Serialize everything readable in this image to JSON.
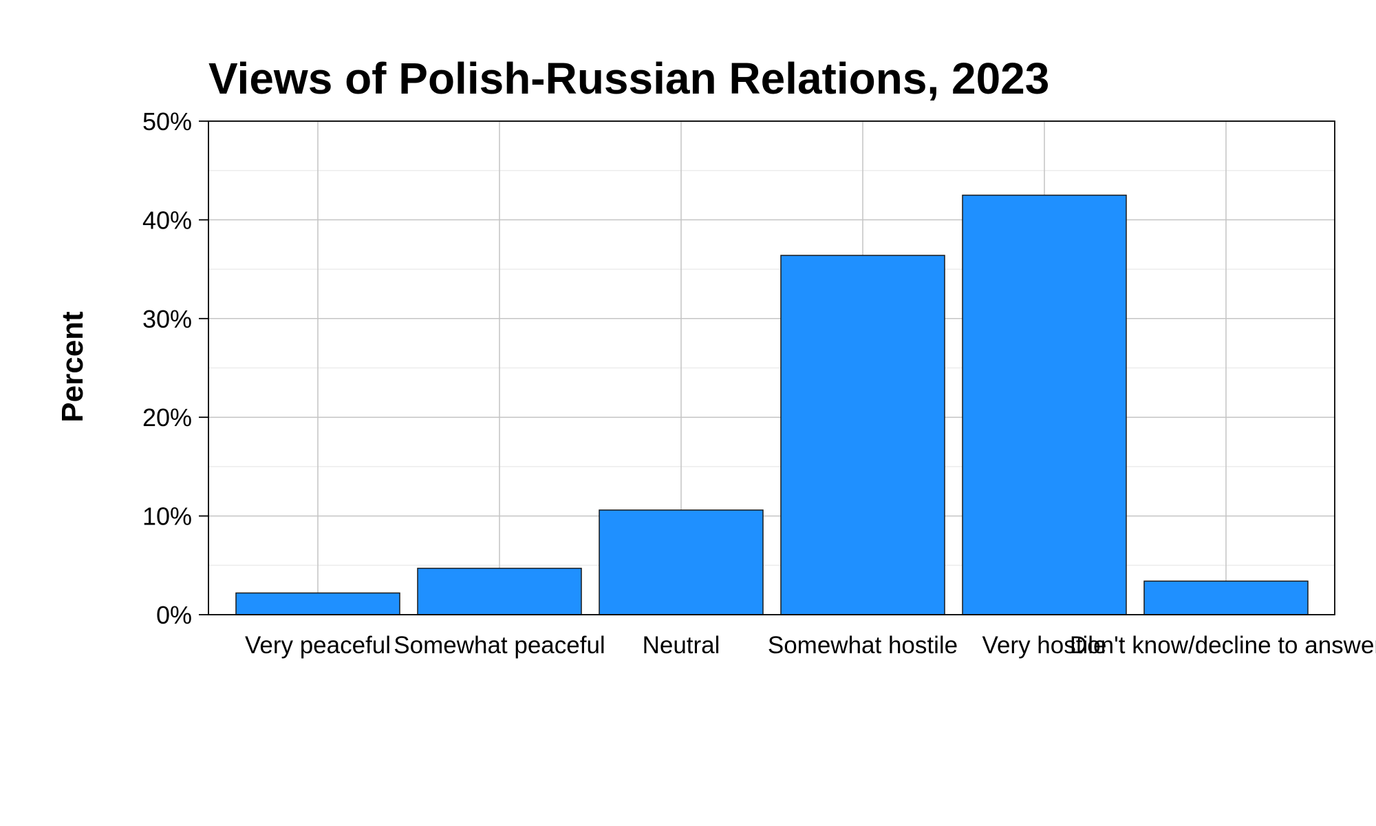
{
  "chart_data": {
    "type": "bar",
    "title": "Views of Polish-Russian Relations, 2023",
    "xlabel": "",
    "ylabel": "Percent",
    "categories": [
      "Very peaceful",
      "Somewhat peaceful",
      "Neutral",
      "Somewhat hostile",
      "Very hostile",
      "Don't know/decline to answer"
    ],
    "values": [
      2.2,
      4.7,
      10.6,
      36.4,
      42.5,
      3.4
    ],
    "ylim": [
      0,
      50
    ],
    "yticks": [
      0,
      10,
      20,
      30,
      40,
      50
    ],
    "ytick_labels": [
      "0%",
      "10%",
      "20%",
      "30%",
      "40%",
      "50%"
    ],
    "grid": true,
    "legend": "none",
    "colors": {
      "bar_fill": "#1F90FF",
      "bar_stroke": "#1a1a1a",
      "grid_major": "#c4c4c4",
      "grid_minor": "#ececec",
      "axis": "#000000"
    }
  }
}
